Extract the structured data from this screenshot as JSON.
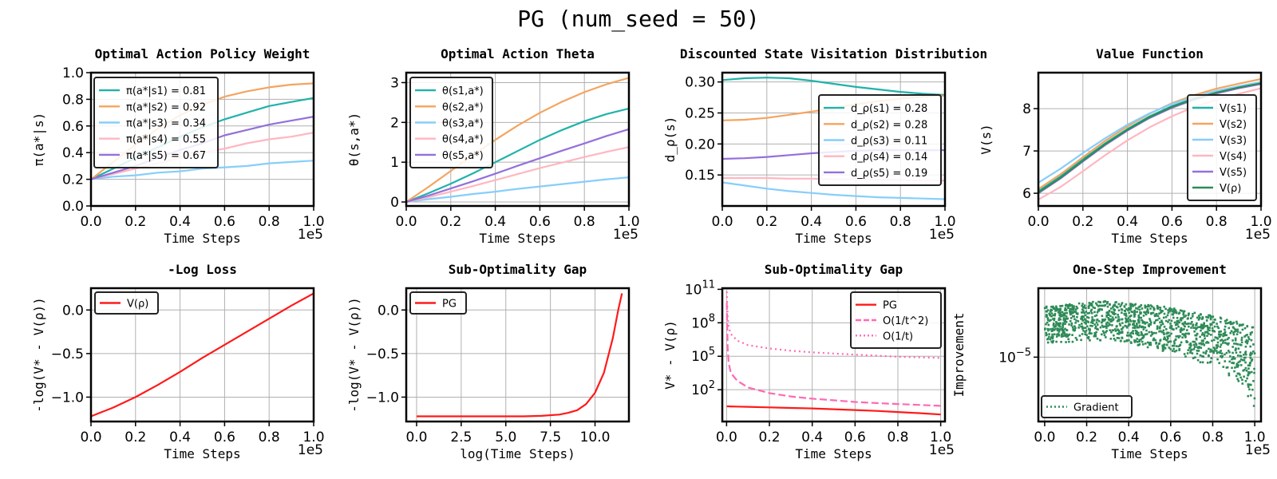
{
  "figure_title": "PG (num_seed = 50)",
  "chart_data": [
    {
      "type": "line",
      "title": "Optimal Action Policy Weight",
      "xlabel": "Time Steps",
      "ylabel": "π(a*|s)",
      "x_multiplier": "1e5",
      "xlim": [
        0,
        1.0
      ],
      "ylim": [
        0,
        1.0
      ],
      "xticks": [
        "0.0",
        "0.2",
        "0.4",
        "0.6",
        "0.8",
        "1.0"
      ],
      "yticks": [
        "0.0",
        "0.2",
        "0.4",
        "0.6",
        "0.8",
        "1.0"
      ],
      "grid": true,
      "legend_position": "upper-left",
      "x": [
        0,
        0.1,
        0.2,
        0.3,
        0.4,
        0.5,
        0.6,
        0.7,
        0.8,
        0.9,
        1.0
      ],
      "series": [
        {
          "name": "π(a*|s1) = 0.81",
          "color": "#20b2aa",
          "values": [
            0.2,
            0.28,
            0.36,
            0.44,
            0.52,
            0.59,
            0.65,
            0.7,
            0.75,
            0.78,
            0.81
          ]
        },
        {
          "name": "π(a*|s2) = 0.92",
          "color": "#f4a460",
          "values": [
            0.2,
            0.33,
            0.46,
            0.58,
            0.68,
            0.76,
            0.82,
            0.86,
            0.89,
            0.91,
            0.92
          ]
        },
        {
          "name": "π(a*|s3) = 0.34",
          "color": "#87cefa",
          "values": [
            0.2,
            0.22,
            0.23,
            0.25,
            0.26,
            0.28,
            0.29,
            0.3,
            0.32,
            0.33,
            0.34
          ]
        },
        {
          "name": "π(a*|s4) = 0.55",
          "color": "#ffb6c1",
          "values": [
            0.2,
            0.24,
            0.28,
            0.32,
            0.36,
            0.4,
            0.43,
            0.47,
            0.5,
            0.52,
            0.55
          ]
        },
        {
          "name": "π(a*|s5) = 0.67",
          "color": "#9370db",
          "values": [
            0.2,
            0.25,
            0.3,
            0.36,
            0.42,
            0.47,
            0.53,
            0.57,
            0.61,
            0.64,
            0.67
          ]
        }
      ]
    },
    {
      "type": "line",
      "title": "Optimal Action Theta",
      "xlabel": "Time Steps",
      "ylabel": "θ(s,a*)",
      "x_multiplier": "1e5",
      "xlim": [
        0,
        1.0
      ],
      "ylim": [
        -0.1,
        3.25
      ],
      "xticks": [
        "0.0",
        "0.2",
        "0.4",
        "0.6",
        "0.8",
        "1.0"
      ],
      "yticks": [
        "0",
        "1",
        "2",
        "3"
      ],
      "grid": true,
      "legend_position": "upper-left",
      "x": [
        0,
        0.1,
        0.2,
        0.3,
        0.4,
        0.5,
        0.6,
        0.7,
        0.8,
        0.9,
        1.0
      ],
      "series": [
        {
          "name": "θ(s1,a*)",
          "color": "#20b2aa",
          "values": [
            0.0,
            0.22,
            0.46,
            0.72,
            1.0,
            1.28,
            1.56,
            1.81,
            2.03,
            2.21,
            2.35
          ]
        },
        {
          "name": "θ(s2,a*)",
          "color": "#f4a460",
          "values": [
            0.0,
            0.38,
            0.78,
            1.18,
            1.56,
            1.92,
            2.24,
            2.52,
            2.76,
            2.96,
            3.12
          ]
        },
        {
          "name": "θ(s3,a*)",
          "color": "#87cefa",
          "values": [
            0.0,
            0.07,
            0.13,
            0.2,
            0.26,
            0.33,
            0.39,
            0.45,
            0.51,
            0.57,
            0.62
          ]
        },
        {
          "name": "θ(s4,a*)",
          "color": "#ffb6c1",
          "values": [
            0.0,
            0.12,
            0.26,
            0.4,
            0.55,
            0.7,
            0.85,
            0.99,
            1.13,
            1.26,
            1.38
          ]
        },
        {
          "name": "θ(s5,a*)",
          "color": "#9370db",
          "values": [
            0.0,
            0.16,
            0.34,
            0.52,
            0.71,
            0.91,
            1.1,
            1.29,
            1.47,
            1.66,
            1.83
          ]
        }
      ]
    },
    {
      "type": "line",
      "title": "Discounted State Visitation Distribution",
      "xlabel": "Time Steps",
      "ylabel": "d_ρ(s)",
      "x_multiplier": "1e5",
      "xlim": [
        0,
        1.0
      ],
      "ylim": [
        0.1,
        0.315
      ],
      "xticks": [
        "0.0",
        "0.2",
        "0.4",
        "0.6",
        "0.8",
        "1.0"
      ],
      "yticks": [
        "0.15",
        "0.20",
        "0.25",
        "0.30"
      ],
      "grid": true,
      "legend_position": "lower-right",
      "x": [
        0,
        0.1,
        0.2,
        0.3,
        0.4,
        0.5,
        0.6,
        0.7,
        0.8,
        0.9,
        1.0
      ],
      "series": [
        {
          "name": "d_ρ(s1) = 0.28",
          "color": "#20b2aa",
          "values": [
            0.303,
            0.306,
            0.307,
            0.306,
            0.302,
            0.297,
            0.292,
            0.288,
            0.284,
            0.281,
            0.279
          ]
        },
        {
          "name": "d_ρ(s2) = 0.28",
          "color": "#f4a460",
          "values": [
            0.238,
            0.239,
            0.242,
            0.247,
            0.252,
            0.258,
            0.264,
            0.269,
            0.273,
            0.276,
            0.278
          ]
        },
        {
          "name": "d_ρ(s3) = 0.11",
          "color": "#87cefa",
          "values": [
            0.138,
            0.133,
            0.128,
            0.124,
            0.121,
            0.118,
            0.116,
            0.114,
            0.113,
            0.112,
            0.111
          ]
        },
        {
          "name": "d_ρ(s4) = 0.14",
          "color": "#ffb6c1",
          "values": [
            0.145,
            0.145,
            0.145,
            0.144,
            0.144,
            0.143,
            0.143,
            0.142,
            0.142,
            0.141,
            0.141
          ]
        },
        {
          "name": "d_ρ(s5) = 0.19",
          "color": "#9370db",
          "values": [
            0.176,
            0.177,
            0.179,
            0.182,
            0.185,
            0.187,
            0.189,
            0.19,
            0.19,
            0.19,
            0.19
          ]
        }
      ]
    },
    {
      "type": "line",
      "title": "Value Function",
      "xlabel": "Time Steps",
      "ylabel": "V(s)",
      "x_multiplier": "1e5",
      "xlim": [
        0,
        1.0
      ],
      "ylim": [
        5.7,
        8.85
      ],
      "xticks": [
        "0.0",
        "0.2",
        "0.4",
        "0.6",
        "0.8",
        "1.0"
      ],
      "yticks": [
        "6",
        "7",
        "8"
      ],
      "grid": true,
      "legend_position": "right",
      "x": [
        0,
        0.1,
        0.2,
        0.3,
        0.4,
        0.5,
        0.6,
        0.7,
        0.8,
        0.9,
        1.0
      ],
      "series": [
        {
          "name": "V(s1)",
          "color": "#20b2aa",
          "values": [
            6.05,
            6.4,
            6.8,
            7.18,
            7.52,
            7.82,
            8.06,
            8.24,
            8.38,
            8.5,
            8.6
          ]
        },
        {
          "name": "V(s2)",
          "color": "#f4a460",
          "values": [
            6.1,
            6.45,
            6.85,
            7.24,
            7.58,
            7.88,
            8.13,
            8.32,
            8.47,
            8.59,
            8.7
          ]
        },
        {
          "name": "V(s3)",
          "color": "#87cefa",
          "values": [
            6.25,
            6.58,
            6.95,
            7.3,
            7.62,
            7.89,
            8.11,
            8.28,
            8.42,
            8.53,
            8.63
          ]
        },
        {
          "name": "V(s4)",
          "color": "#ffb6c1",
          "values": [
            5.85,
            6.15,
            6.52,
            6.9,
            7.25,
            7.56,
            7.82,
            8.04,
            8.21,
            8.35,
            8.48
          ]
        },
        {
          "name": "V(s5)",
          "color": "#9370db",
          "values": [
            6.0,
            6.35,
            6.75,
            7.14,
            7.48,
            7.78,
            8.02,
            8.21,
            8.36,
            8.48,
            8.58
          ]
        },
        {
          "name": "V(ρ)",
          "color": "#2e8b57",
          "values": [
            6.02,
            6.37,
            6.77,
            7.16,
            7.5,
            7.8,
            8.04,
            8.23,
            8.38,
            8.5,
            8.6
          ]
        }
      ]
    },
    {
      "type": "line",
      "title": "-Log Loss",
      "xlabel": "Time Steps",
      "ylabel": "-log(V* - V(ρ))",
      "x_multiplier": "1e5",
      "xlim": [
        0,
        1.0
      ],
      "ylim": [
        -1.28,
        0.25
      ],
      "xticks": [
        "0.0",
        "0.2",
        "0.4",
        "0.6",
        "0.8",
        "1.0"
      ],
      "yticks": [
        "−1.0",
        "−0.5",
        "0.0"
      ],
      "ytick_values": [
        -1.0,
        -0.5,
        0.0
      ],
      "grid": true,
      "legend_position": "upper-left",
      "x": [
        0,
        0.1,
        0.2,
        0.3,
        0.4,
        0.5,
        0.6,
        0.7,
        0.8,
        0.9,
        1.0
      ],
      "series": [
        {
          "name": "V(ρ)",
          "color": "#ff1a1a",
          "values": [
            -1.22,
            -1.12,
            -1.0,
            -0.86,
            -0.71,
            -0.55,
            -0.4,
            -0.25,
            -0.1,
            0.05,
            0.19
          ]
        }
      ]
    },
    {
      "type": "line",
      "title": "Sub-Optimality Gap",
      "xlabel": "log(Time Steps)",
      "ylabel": "-log(V* - V(ρ))",
      "xlim": [
        -0.58,
        11.9
      ],
      "ylim": [
        -1.28,
        0.25
      ],
      "xticks": [
        "0.0",
        "2.5",
        "5.0",
        "7.5",
        "10.0"
      ],
      "xtick_values": [
        0,
        2.5,
        5.0,
        7.5,
        10.0
      ],
      "yticks": [
        "−1.0",
        "−0.5",
        "0.0"
      ],
      "ytick_values": [
        -1.0,
        -0.5,
        0.0
      ],
      "grid": true,
      "legend_position": "upper-left",
      "x": [
        0,
        2,
        4,
        6,
        7,
        8,
        8.5,
        9,
        9.5,
        10,
        10.5,
        11,
        11.3,
        11.51
      ],
      "series": [
        {
          "name": "PG",
          "color": "#ff1a1a",
          "values": [
            -1.22,
            -1.22,
            -1.22,
            -1.22,
            -1.215,
            -1.2,
            -1.18,
            -1.15,
            -1.08,
            -0.95,
            -0.72,
            -0.32,
            0.0,
            0.19
          ]
        }
      ]
    },
    {
      "type": "line",
      "title": "Sub-Optimality Gap",
      "xlabel": "Time Steps",
      "ylabel": "V* - V(ρ)",
      "x_multiplier": "1e5",
      "yscale": "log",
      "xlim": [
        -0.02,
        1.02
      ],
      "ylim": [
        -0.85,
        11.1
      ],
      "xticks": [
        "0.0",
        "0.2",
        "0.4",
        "0.6",
        "0.8",
        "1.0"
      ],
      "yticks": [
        "10^2",
        "10^5",
        "10^8",
        "10^11"
      ],
      "ytick_values": [
        2,
        5,
        8,
        11
      ],
      "grid": true,
      "legend_position": "upper-right",
      "x": [
        0.001,
        0.005,
        0.01,
        0.02,
        0.05,
        0.1,
        0.2,
        0.3,
        0.4,
        0.5,
        0.6,
        0.7,
        0.8,
        0.9,
        1.0
      ],
      "series": [
        {
          "name": "PG",
          "color": "#ff1a1a",
          "dash": "solid",
          "values": [
            0.51,
            0.51,
            0.51,
            0.5,
            0.49,
            0.47,
            0.42,
            0.37,
            0.32,
            0.25,
            0.18,
            0.1,
            0.0,
            -0.1,
            -0.22
          ]
        },
        {
          "name": "O(1/t^2)",
          "color": "#ff69b4",
          "dash": "dash",
          "values": [
            9.8,
            5.8,
            4.4,
            3.5,
            2.8,
            2.2,
            1.7,
            1.4,
            1.2,
            1.05,
            0.9,
            0.8,
            0.72,
            0.64,
            0.55
          ]
        },
        {
          "name": "O(1/t)",
          "color": "#ff69b4",
          "dash": "dot",
          "values": [
            10.8,
            8.6,
            7.6,
            7.0,
            6.4,
            6.0,
            5.7,
            5.5,
            5.35,
            5.25,
            5.15,
            5.05,
            4.95,
            4.9,
            4.85
          ]
        }
      ]
    },
    {
      "type": "scatter",
      "title": "One-Step Improvement",
      "xlabel": "Time Steps",
      "ylabel": "Improvement",
      "x_multiplier": "1e5",
      "yscale": "log",
      "xlim": [
        -0.03,
        1.03
      ],
      "ylim": [
        -6.4,
        -3.5
      ],
      "xticks": [
        "0.0",
        "0.2",
        "0.4",
        "0.6",
        "0.8",
        "1.0"
      ],
      "yticks": [
        "10^−5"
      ],
      "ytick_values": [
        -5
      ],
      "grid": true,
      "legend_position": "lower-left",
      "x": [
        0,
        0.1,
        0.2,
        0.3,
        0.4,
        0.5,
        0.6,
        0.7,
        0.8,
        0.9,
        1.0
      ],
      "series": [
        {
          "name": "Gradient",
          "color": "#2e8b57",
          "upper": [
            -3.9,
            -3.85,
            -3.8,
            -3.78,
            -3.8,
            -3.85,
            -3.92,
            -4.0,
            -4.1,
            -4.2,
            -4.35
          ],
          "lower": [
            -4.7,
            -4.68,
            -4.65,
            -4.65,
            -4.7,
            -4.8,
            -4.9,
            -5.05,
            -5.2,
            -5.45,
            -6.15
          ]
        }
      ]
    }
  ]
}
